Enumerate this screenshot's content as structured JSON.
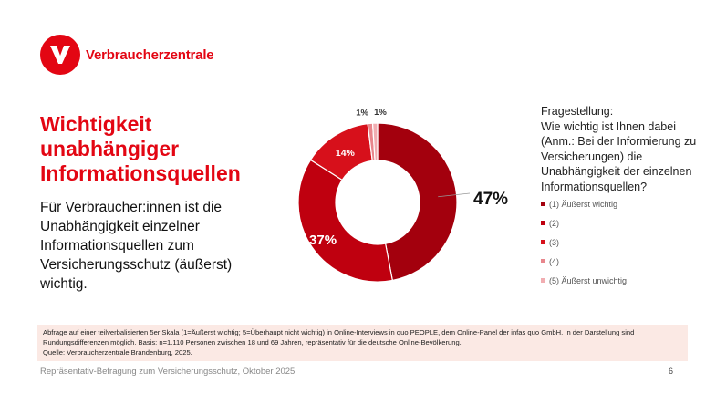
{
  "brand": {
    "name": "Verbraucherzentrale",
    "color": "#e30613"
  },
  "title": "Wichtigkeit unabhängiger Informationsquellen",
  "subtitle": "Für Verbraucher:innen ist die Unabhängigkeit einzelner Informationsquellen zum Versicherungsschutz (äußerst) wichtig.",
  "question": {
    "label": "Fragestellung:",
    "text": "Wie wichtig ist Ihnen dabei (Anm.: Bei der Informierung zu Versicherungen) die Unabhängigkeit der einzelnen Informationsquellen?"
  },
  "chart_data": {
    "type": "pie",
    "donut": true,
    "categories": [
      "(1) Äußerst wichtig",
      "(2)",
      "(3)",
      "(4)",
      "(5) Äußerst unwichtig"
    ],
    "values": [
      47,
      37,
      14,
      1,
      1
    ],
    "labels": [
      "47%",
      "37%",
      "14%",
      "1%",
      "1%"
    ],
    "colors": [
      "#a3000d",
      "#bf000f",
      "#d7101b",
      "#e8868c",
      "#f1adb1"
    ],
    "legend_position": "right"
  },
  "note": {
    "lines": [
      "Abfrage auf einer teilverbalisierten 5er Skala (1=Äußerst wichtig; 5=Überhaupt nicht wichtig) in Online-Interviews in quo PEOPLE, dem Online-Panel der infas quo GmbH. In der Darstellung sind Rundungsdifferenzen möglich. Basis: n=1.110 Personen zwischen 18 und 69 Jahren, repräsentativ für die deutsche Online-Bevölkerung.",
      "Quelle: Verbraucherzentrale Brandenburg, 2025."
    ]
  },
  "footer": "Repräsentativ-Befragung zum Versicherungsschutz, Oktober 2025",
  "page_number": "6"
}
